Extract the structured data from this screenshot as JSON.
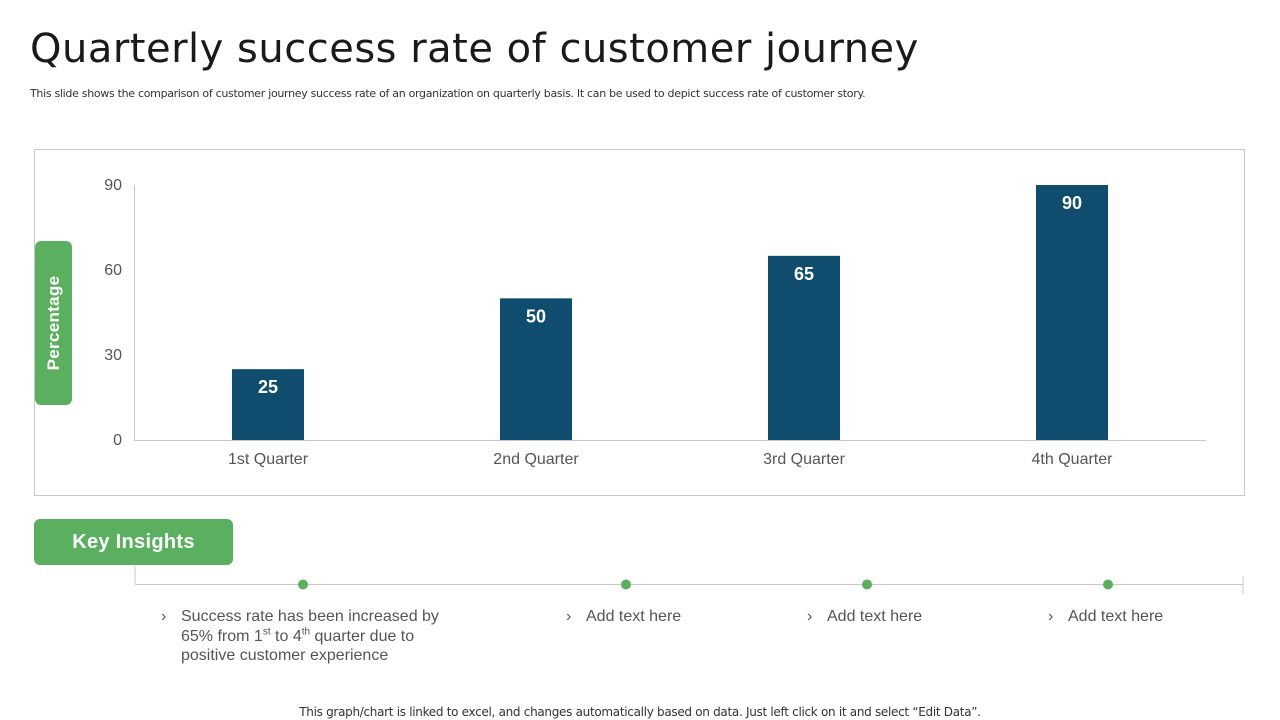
{
  "title": "Quarterly success rate of customer journey",
  "subtitle": "This slide shows the comparison of customer journey success rate of an organization on quarterly basis. It can be used to depict success rate of customer story.",
  "chart_data": {
    "type": "bar",
    "categories": [
      "1st Quarter",
      "2nd Quarter",
      "3rd Quarter",
      "4th Quarter"
    ],
    "values": [
      25,
      50,
      65,
      90
    ],
    "ylabel": "Percentage",
    "xlabel": "",
    "ylim": [
      0,
      90
    ],
    "yticks": [
      0,
      30,
      60,
      90
    ],
    "bar_color": "#0f4c6e",
    "data_labels": true
  },
  "key_insights": {
    "label": "Key Insights",
    "items": [
      {
        "chevron": "›",
        "text_parts": [
          "Success rate has been increased by 65% from 1",
          "st",
          " to 4",
          "th",
          " quarter due to positive customer  experience"
        ]
      },
      {
        "chevron": "›",
        "text": "Add text here"
      },
      {
        "chevron": "›",
        "text": "Add text here"
      },
      {
        "chevron": "›",
        "text": "Add text here"
      }
    ]
  },
  "footer": "This graph/chart is linked to excel,  and changes automatically based on data. Just left click on it and select “Edit Data”.",
  "colors": {
    "accent": "#5ab05f",
    "bar": "#0f4c6e",
    "axis": "#c8c8c8"
  }
}
